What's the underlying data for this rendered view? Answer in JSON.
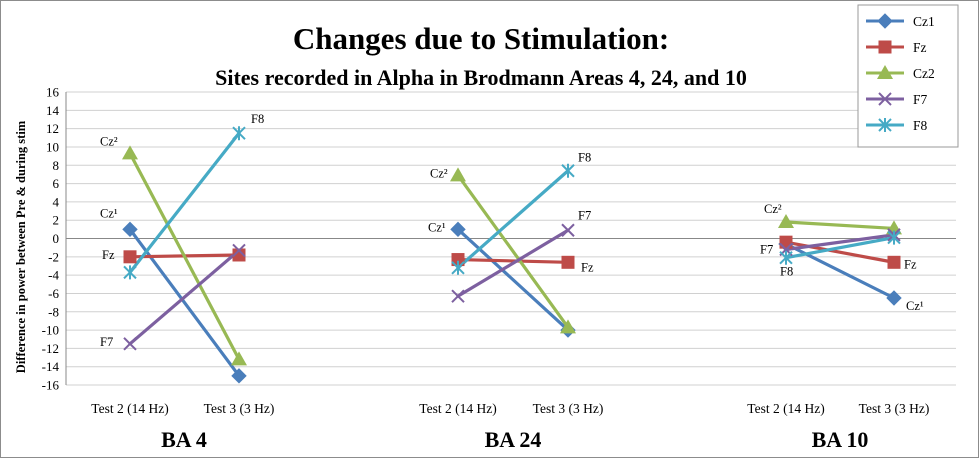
{
  "chart_data": {
    "type": "line",
    "title": "Changes due to Stimulation:",
    "subtitle": "Sites recorded in Alpha in Brodmann Areas 4, 24, and 10",
    "ylabel": "Difference in power between Pre & during stim",
    "ylim": [
      -16,
      16
    ],
    "ytick_step": 2,
    "grid": true,
    "legend_position": "top-right",
    "groups": [
      {
        "name": "BA 4",
        "x_labels": [
          "Test 2 (14 Hz)",
          "Test 3 (3 Hz)"
        ],
        "values": {
          "Cz1": [
            1,
            -15
          ],
          "Fz": [
            -2,
            -1.8
          ],
          "Cz2": [
            9.3,
            -13.2
          ],
          "F7": [
            -11.5,
            -1.3
          ],
          "F8": [
            -3.7,
            11.5
          ]
        },
        "annotations": [
          {
            "text": "Cz²",
            "series": "Cz2",
            "point": 0
          },
          {
            "text": "Cz¹",
            "series": "Cz1",
            "point": 0
          },
          {
            "text": "Fz",
            "series": "Fz",
            "point": 0
          },
          {
            "text": "F7",
            "series": "F7",
            "point": 0
          },
          {
            "text": "F8",
            "series": "F8",
            "point": 1
          }
        ]
      },
      {
        "name": "BA 24",
        "x_labels": [
          "Test 2 (14 Hz)",
          "Test 3 (3 Hz)"
        ],
        "values": {
          "Cz1": [
            1,
            -10
          ],
          "Fz": [
            -2.3,
            -2.6
          ],
          "Cz2": [
            6.9,
            -9.7
          ],
          "F7": [
            -6.3,
            0.9
          ],
          "F8": [
            -3.2,
            7.4
          ]
        },
        "annotations": [
          {
            "text": "Cz²",
            "series": "Cz2",
            "point": 0
          },
          {
            "text": "Cz¹",
            "series": "Cz1",
            "point": 0
          },
          {
            "text": "F8",
            "series": "F8",
            "point": 1
          },
          {
            "text": "F7",
            "series": "F7",
            "point": 1
          },
          {
            "text": "Fz",
            "series": "Fz",
            "point": 1
          }
        ]
      },
      {
        "name": "BA 10",
        "x_labels": [
          "Test 2 (14 Hz)",
          "Test 3 (3 Hz)"
        ],
        "values": {
          "Cz1": [
            -0.6,
            -6.5
          ],
          "Fz": [
            -0.4,
            -2.6
          ],
          "Cz2": [
            1.8,
            1.1
          ],
          "F7": [
            -1.2,
            0.4
          ],
          "F8": [
            -2.1,
            0.1
          ]
        },
        "annotations": [
          {
            "text": "Cz²",
            "series": "Cz2",
            "point": 0
          },
          {
            "text": "F7",
            "series": "F7",
            "point": 0
          },
          {
            "text": "F8",
            "series": "F8",
            "point": 0
          },
          {
            "text": "Fz",
            "series": "Fz",
            "point": 1
          },
          {
            "text": "Cz¹",
            "series": "Cz1",
            "point": 1
          }
        ]
      }
    ],
    "series": [
      {
        "id": "Cz1",
        "name": "Cz1",
        "color": "#4a7ebb",
        "marker": "diamond"
      },
      {
        "id": "Fz",
        "name": "Fz",
        "color": "#be4b48",
        "marker": "square"
      },
      {
        "id": "Cz2",
        "name": "Cz2",
        "color": "#98b954",
        "marker": "triangle"
      },
      {
        "id": "F7",
        "name": "F7",
        "color": "#7d60a0",
        "marker": "x"
      },
      {
        "id": "F8",
        "name": "F8",
        "color": "#46aac5",
        "marker": "star"
      }
    ]
  }
}
